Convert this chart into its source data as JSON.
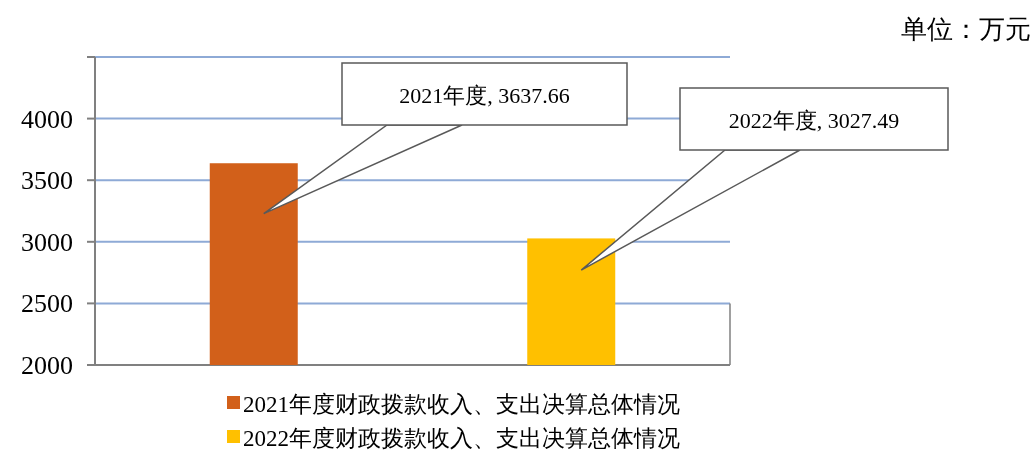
{
  "chart_data": {
    "type": "bar",
    "categories": [
      null
    ],
    "series": [
      {
        "name": "2021年度财政拨款收入、支出决算总体情况",
        "color": "#d2601a",
        "values": [
          3637.66
        ]
      },
      {
        "name": "2022年度财政拨款收入、支出决算总体情况",
        "color": "#ffc000",
        "values": [
          3027.49
        ]
      }
    ],
    "ylim": [
      2000,
      4500
    ],
    "yticks": [
      2000,
      2500,
      3000,
      3500,
      4000,
      {
        "value": 4500,
        "label": null
      }
    ],
    "grid": "y",
    "legend": "bottom",
    "annotations": [
      "单位：万元",
      "2021年度, 3637.66",
      "2022年度, 3027.49"
    ]
  }
}
